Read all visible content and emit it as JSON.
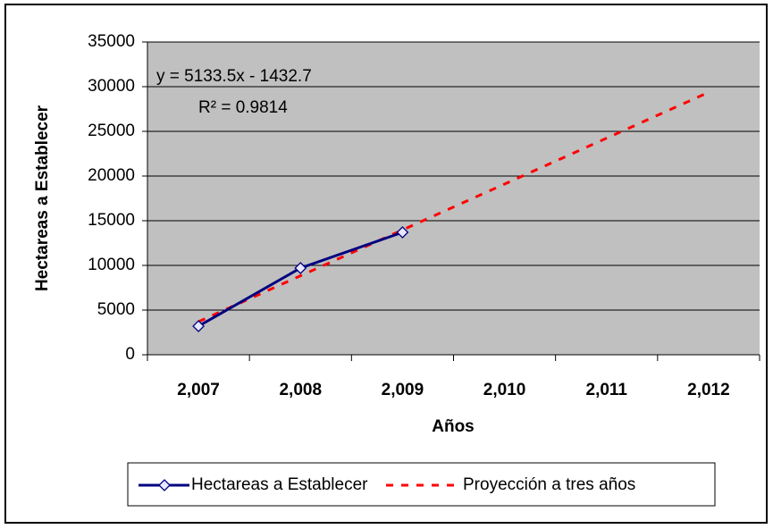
{
  "chart_data": {
    "type": "line",
    "categories": [
      "2,007",
      "2,008",
      "2,009",
      "2,010",
      "2,011",
      "2,012"
    ],
    "series": [
      {
        "name": "Hectareas a Establecer",
        "color": "#000080",
        "values": [
          3200,
          9700,
          13700,
          null,
          null,
          null
        ]
      },
      {
        "name": "Proyección a tres años",
        "color": "#ff0000",
        "values": [
          3701,
          8834,
          13968,
          19101,
          24235,
          29368
        ]
      }
    ],
    "ylim": [
      0,
      35000
    ],
    "yticks": [
      0,
      5000,
      10000,
      15000,
      20000,
      25000,
      30000,
      35000
    ],
    "grid": true,
    "legend": "bottom",
    "xlabel": "Años",
    "ylabel": "Hectareas a Establecer",
    "annotations": [
      "y = 5133.5x - 1432.7",
      "R² = 0.9814"
    ]
  }
}
